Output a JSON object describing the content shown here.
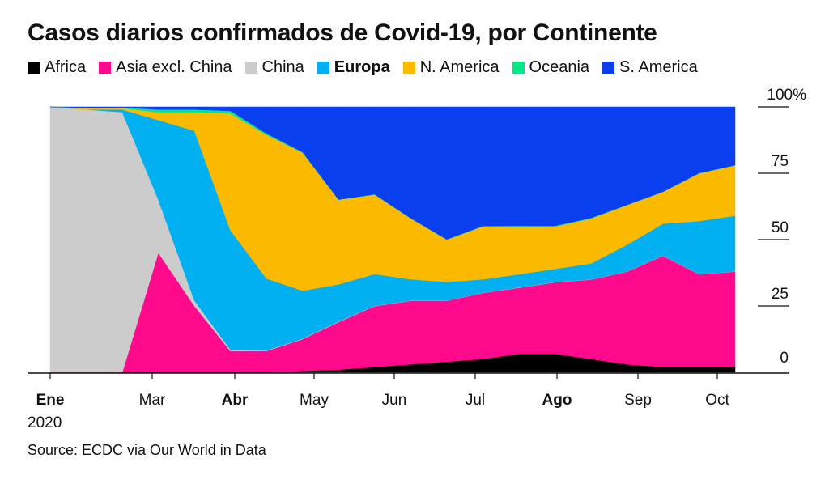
{
  "title": "Casos diarios confirmados de Covid-19, por Continente",
  "source": "Source: ECDC via Our World in Data",
  "legend": [
    {
      "label": "Africa",
      "color": "#000000",
      "bold": false
    },
    {
      "label": "Asia excl. China",
      "color": "#ff0a8c",
      "bold": false
    },
    {
      "label": "China",
      "color": "#cccccc",
      "bold": false
    },
    {
      "label": "Europa",
      "color": "#00b0f0",
      "bold": true
    },
    {
      "label": "N. America",
      "color": "#fbba00",
      "bold": false
    },
    {
      "label": "Oceania",
      "color": "#00e887",
      "bold": false
    },
    {
      "label": "S. America",
      "color": "#0a3ff0",
      "bold": false
    }
  ],
  "chart_data": {
    "type": "area",
    "stacked": true,
    "normalized": true,
    "x_labels": [
      {
        "label": "Ene",
        "bold": true,
        "sublabel": "2020"
      },
      {
        "label": "Mar",
        "bold": false
      },
      {
        "label": "Abr",
        "bold": true
      },
      {
        "label": "May",
        "bold": false
      },
      {
        "label": "Jun",
        "bold": false
      },
      {
        "label": "Jul",
        "bold": false
      },
      {
        "label": "Ago",
        "bold": true
      },
      {
        "label": "Sep",
        "bold": false
      },
      {
        "label": "Oct",
        "bold": false
      }
    ],
    "y_ticks": [
      {
        "value": 100,
        "label": "100%"
      },
      {
        "value": 75,
        "label": "75"
      },
      {
        "value": 50,
        "label": "50"
      },
      {
        "value": 25,
        "label": "25"
      },
      {
        "value": 0,
        "label": "0"
      }
    ],
    "ylim": [
      0,
      100
    ],
    "x": [
      "Ene 1",
      "Feb 1",
      "Feb 20",
      "Mar 1",
      "Mar 10",
      "Mar 20",
      "Abr 1",
      "Abr 15",
      "May 1",
      "May 15",
      "Jun 1",
      "Jun 15",
      "Jul 1",
      "Jul 15",
      "Ago 1",
      "Ago 15",
      "Sep 1",
      "Sep 15",
      "Oct 1",
      "Oct 7"
    ],
    "series": [
      {
        "name": "Africa",
        "values": [
          0,
          0,
          0,
          0,
          0,
          0,
          0,
          0.5,
          1,
          2,
          3,
          4,
          5,
          7,
          7,
          5,
          3,
          2,
          2,
          2
        ]
      },
      {
        "name": "Asia excl. China",
        "values": [
          0,
          0,
          0,
          45,
          25,
          8,
          8,
          12,
          18,
          23,
          24,
          23,
          25,
          25,
          27,
          30,
          35,
          42,
          35,
          36
        ]
      },
      {
        "name": "China",
        "values": [
          100,
          99,
          98,
          20,
          2,
          0.5,
          0.2,
          0.2,
          0.2,
          0.1,
          0.1,
          0.1,
          0.1,
          0.1,
          0.1,
          0.1,
          0.1,
          0.1,
          0.1,
          0.1
        ]
      },
      {
        "name": "Europa",
        "values": [
          0,
          0,
          1,
          30,
          64,
          45,
          27,
          18,
          14,
          12,
          8,
          7,
          5,
          5,
          5,
          6,
          10,
          12,
          20,
          21
        ]
      },
      {
        "name": "N. America",
        "values": [
          0,
          0.5,
          0.5,
          3,
          7,
          44,
          54,
          52,
          32,
          30,
          23,
          16,
          20,
          18,
          16,
          17,
          15,
          12,
          18,
          19
        ]
      },
      {
        "name": "Oceania",
        "values": [
          0,
          0.2,
          0.3,
          1,
          1,
          1,
          0.5,
          0.2,
          0.1,
          0.1,
          0.1,
          0.1,
          0.2,
          0.4,
          0.3,
          0.2,
          0.1,
          0.1,
          0.1,
          0.1
        ]
      },
      {
        "name": "S. America",
        "values": [
          0,
          0.3,
          0.2,
          1,
          1,
          1.5,
          10,
          17,
          35,
          33,
          42,
          50,
          45,
          45,
          45,
          42,
          37,
          32,
          25,
          22
        ]
      }
    ]
  }
}
